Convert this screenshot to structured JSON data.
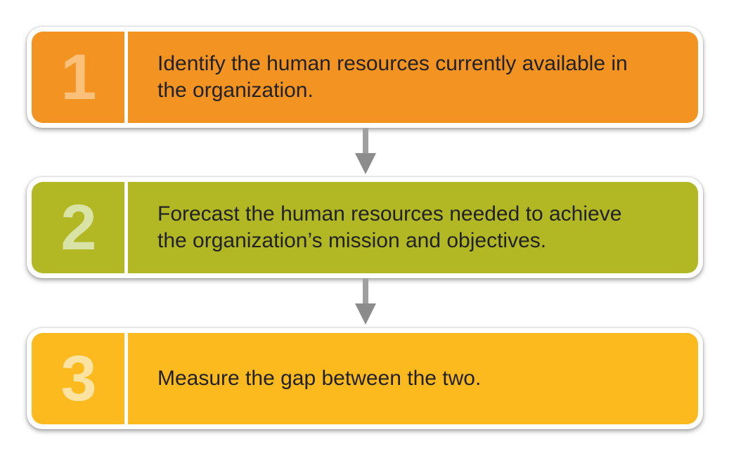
{
  "steps": [
    {
      "number": "1",
      "text": "Identify the human resources currently available in the organization.",
      "fill_color": "#f39322",
      "number_color": "#fbc07a"
    },
    {
      "number": "2",
      "text": "Forecast the human resources needed to achieve the organization’s mission and objectives.",
      "fill_color": "#b2b824",
      "number_color": "#d9e3a6"
    },
    {
      "number": "3",
      "text": "Measure the gap between the two.",
      "fill_color": "#fcba1e",
      "number_color": "#fde3a2"
    }
  ],
  "connectors": [
    {
      "icon": "arrow-down-icon",
      "color": "#8c8c8c"
    },
    {
      "icon": "arrow-down-icon",
      "color": "#8c8c8c"
    }
  ]
}
